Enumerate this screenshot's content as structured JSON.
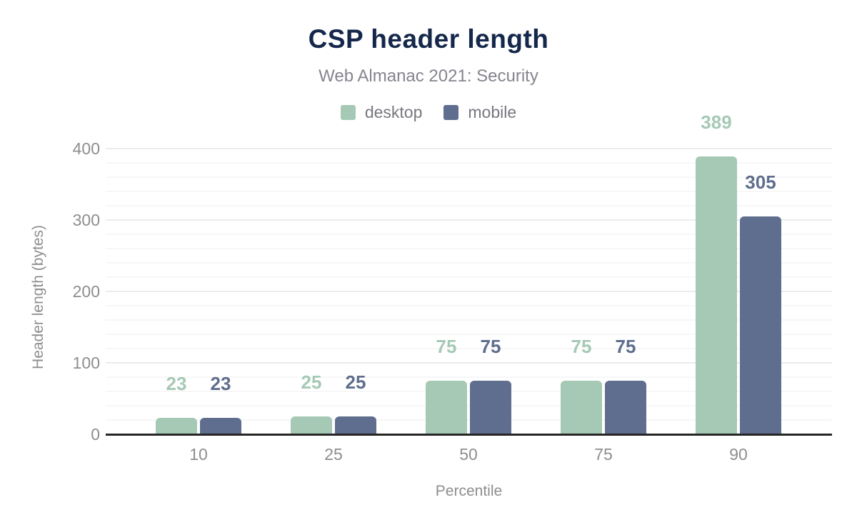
{
  "chart_data": {
    "type": "bar",
    "title": "CSP header length",
    "subtitle": "Web Almanac 2021: Security",
    "xlabel": "Percentile",
    "ylabel": "Header length (bytes)",
    "categories": [
      "10",
      "25",
      "50",
      "75",
      "90"
    ],
    "series": [
      {
        "name": "desktop",
        "color": "#a6c9b6",
        "values": [
          23,
          25,
          75,
          75,
          389
        ]
      },
      {
        "name": "mobile",
        "color": "#5f6e8e",
        "values": [
          23,
          25,
          75,
          75,
          305
        ]
      }
    ],
    "ylim": [
      0,
      400
    ],
    "y_ticks": [
      0,
      100,
      200,
      300,
      400
    ],
    "y_minor_step": 20,
    "grid": "horizontal-only",
    "legend_position": "top-center",
    "colors": {
      "title": "#15284b",
      "subtitle": "#85858f",
      "axis_line": "#262626",
      "tick_labels": "#8e8e8e",
      "legend_text": "#77777f",
      "gridline_major": "#ececec",
      "gridline_minor": "#f7f7f7",
      "background": "#ffffff"
    }
  }
}
